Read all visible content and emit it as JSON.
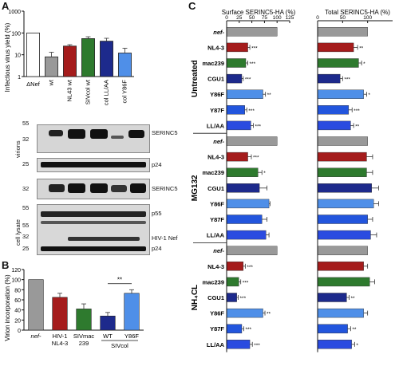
{
  "panels": {
    "A": "A",
    "B": "B",
    "C": "C"
  },
  "panelA": {
    "chart_data": {
      "type": "bar",
      "ylabel": "Infectious virus yield (%)",
      "yticks": [
        "1000",
        "100",
        "10",
        "1"
      ],
      "ylim": [
        1,
        1000
      ],
      "scale": "log",
      "categories": [
        "ΔNef",
        "wt",
        "NL43 wt",
        "SIVcol wt",
        "col LL/AA",
        "col Y86F"
      ],
      "values": [
        100,
        8,
        25,
        55,
        42,
        12
      ],
      "errors": [
        0,
        5,
        4,
        12,
        15,
        8
      ],
      "colors": [
        "#ffffff",
        "#999999",
        "#a51c1c",
        "#2e7a2e",
        "#1d2a8c",
        "#4f8fe8"
      ]
    },
    "blot": {
      "mw_labels": [
        "55",
        "32",
        "25",
        "32",
        "55",
        "25",
        "55",
        "32",
        "25"
      ],
      "band_labels": [
        "SERINC5",
        "p24",
        "SERINC5",
        "p55",
        "HIV-1 Nef",
        "p24"
      ],
      "virions_label": "virions",
      "lysate_label": "cell lysate"
    }
  },
  "panelB": {
    "chart_data": {
      "type": "bar",
      "ylabel": "Virion incorporation (%)",
      "yticks": [
        "0",
        "20",
        "40",
        "60",
        "80",
        "100",
        "120"
      ],
      "ylim": [
        0,
        120
      ],
      "categories": [
        "nef-",
        "HIV-1",
        "SIVmac",
        "WT",
        "Y86F"
      ],
      "category_sublabels": [
        "",
        "NL4-3",
        "239",
        "",
        ""
      ],
      "group_label": "SIVcol",
      "values": [
        100,
        65,
        42,
        28,
        73
      ],
      "errors": [
        0,
        8,
        10,
        7,
        7
      ],
      "colors": [
        "#999999",
        "#a51c1c",
        "#2e7a2e",
        "#1d2a8c",
        "#4f8fe8"
      ],
      "significance": "**"
    }
  },
  "panelC": {
    "surface_title": "Surface SERINC5-HA (%)",
    "total_title": "Total SERINC5-HA (%)",
    "xticks_surface": [
      "0",
      "25",
      "50",
      "75",
      "100",
      "125"
    ],
    "xticks_total": [
      "0",
      "50",
      "100"
    ],
    "row_labels": [
      "nef-",
      "NL4-3",
      "mac239",
      "CGU1",
      "Y86F",
      "Y87F",
      "LL/AA"
    ],
    "row_colors": [
      "#999999",
      "#a51c1c",
      "#2e7a2e",
      "#1d2a8c",
      "#4f8fe8",
      "#2255dd",
      "#2a4be0"
    ],
    "groups": [
      {
        "name": "Untreated",
        "surface": [
          100,
          42,
          38,
          30,
          72,
          36,
          48
        ],
        "surface_err": [
          0,
          4,
          4,
          3,
          5,
          4,
          5
        ],
        "surface_sig": [
          "",
          "***",
          "***",
          "***",
          "**",
          "***",
          "***"
        ],
        "total": [
          100,
          72,
          82,
          45,
          92,
          62,
          66
        ],
        "total_err": [
          0,
          8,
          6,
          5,
          6,
          7,
          6
        ],
        "total_sig": [
          "",
          "**",
          "*",
          "***",
          "*",
          "***",
          "**"
        ]
      },
      {
        "name": "MG132",
        "surface": [
          100,
          42,
          62,
          65,
          84,
          70,
          78
        ],
        "surface_err": [
          0,
          7,
          8,
          15,
          2,
          10,
          6
        ],
        "surface_sig": [
          "",
          "***",
          "*",
          "",
          "",
          "",
          ""
        ],
        "total": [
          100,
          98,
          98,
          108,
          112,
          100,
          106
        ],
        "total_err": [
          0,
          12,
          12,
          14,
          10,
          10,
          12
        ],
        "total_sig": [
          "",
          "",
          "",
          "",
          "",
          "",
          ""
        ]
      },
      {
        "name": "NH4CL",
        "surface": [
          100,
          33,
          24,
          20,
          72,
          30,
          46
        ],
        "surface_err": [
          0,
          4,
          4,
          3,
          4,
          4,
          5
        ],
        "surface_sig": [
          "",
          "***",
          "***",
          "***",
          "**",
          "***",
          "***"
        ],
        "total": [
          100,
          92,
          104,
          58,
          92,
          60,
          68
        ],
        "total_err": [
          0,
          8,
          10,
          5,
          8,
          6,
          6
        ],
        "total_sig": [
          "",
          "",
          "",
          "**",
          "",
          "**",
          "*"
        ]
      }
    ],
    "group_display_names": [
      "Untreated",
      "MG132",
      "NH₄CL"
    ]
  }
}
